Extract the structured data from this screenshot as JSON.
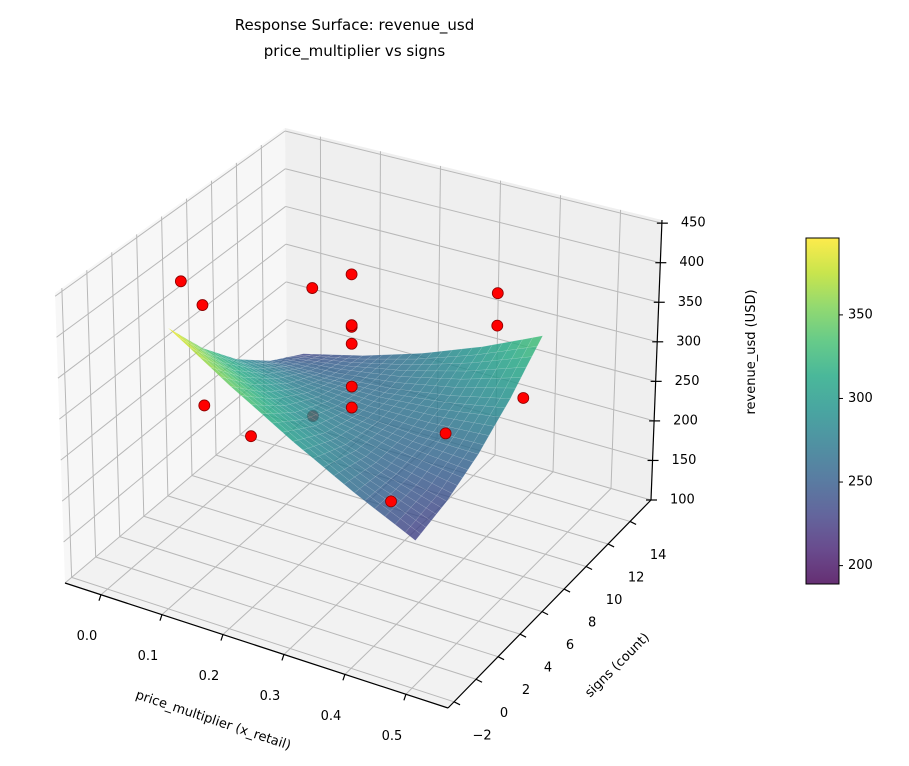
{
  "chart_data": {
    "type": "surface3d",
    "title": "Response Surface: revenue_usd",
    "subtitle": "price_multiplier vs signs",
    "xlabel": "price_multiplier (x_retail)",
    "ylabel": "signs (count)",
    "zlabel": "revenue_usd (USD)",
    "xlim": [
      -0.059,
      0.569
    ],
    "ylim": [
      -2.55,
      15.9
    ],
    "zlim": [
      100,
      454
    ],
    "xticks": [
      "0.0",
      "0.1",
      "0.2",
      "0.3",
      "0.4",
      "0.5"
    ],
    "yticks": [
      "−2",
      "0",
      "2",
      "4",
      "6",
      "8",
      "10",
      "12",
      "14"
    ],
    "zticks": [
      "100",
      "150",
      "200",
      "250",
      "300",
      "350",
      "400",
      "450"
    ],
    "grid": true,
    "view": {
      "elev": 30,
      "azim": -60
    },
    "surface": {
      "colormap": "viridis",
      "x": [
        0.05,
        0.15,
        0.25,
        0.35,
        0.45
      ],
      "y": [
        1,
        3.75,
        6.5,
        9.25,
        12
      ],
      "z": [
        [
          395,
          345,
          300,
          260,
          225
        ],
        [
          338,
          305,
          277,
          255,
          237
        ],
        [
          291,
          276,
          265,
          260,
          259
        ],
        [
          255,
          257,
          263,
          275,
          292
        ],
        [
          229,
          248,
          272,
          301,
          335
        ]
      ]
    },
    "points": {
      "color": "#ff0000",
      "x": [
        0.05,
        0.05,
        0.05,
        0.05,
        0.15,
        0.15,
        0.25,
        0.25,
        0.25,
        0.25,
        0.25,
        0.25,
        0.41,
        0.45,
        0.45,
        0.45,
        0.45
      ],
      "y": [
        2.1,
        3.8,
        3.8,
        7.6,
        7.8,
        7.8,
        6,
        6,
        6,
        6,
        6,
        6,
        1.0,
        3.6,
        8.0,
        8.0,
        10.4
      ],
      "z": [
        440,
        391,
        266,
        180,
        386,
        225,
        445,
        382,
        380,
        359,
        306,
        280,
        263,
        321,
        438,
        398,
        278
      ]
    },
    "colorbar": {
      "range": [
        189,
        396
      ],
      "ticks": [
        "200",
        "250",
        "300",
        "350"
      ]
    }
  }
}
